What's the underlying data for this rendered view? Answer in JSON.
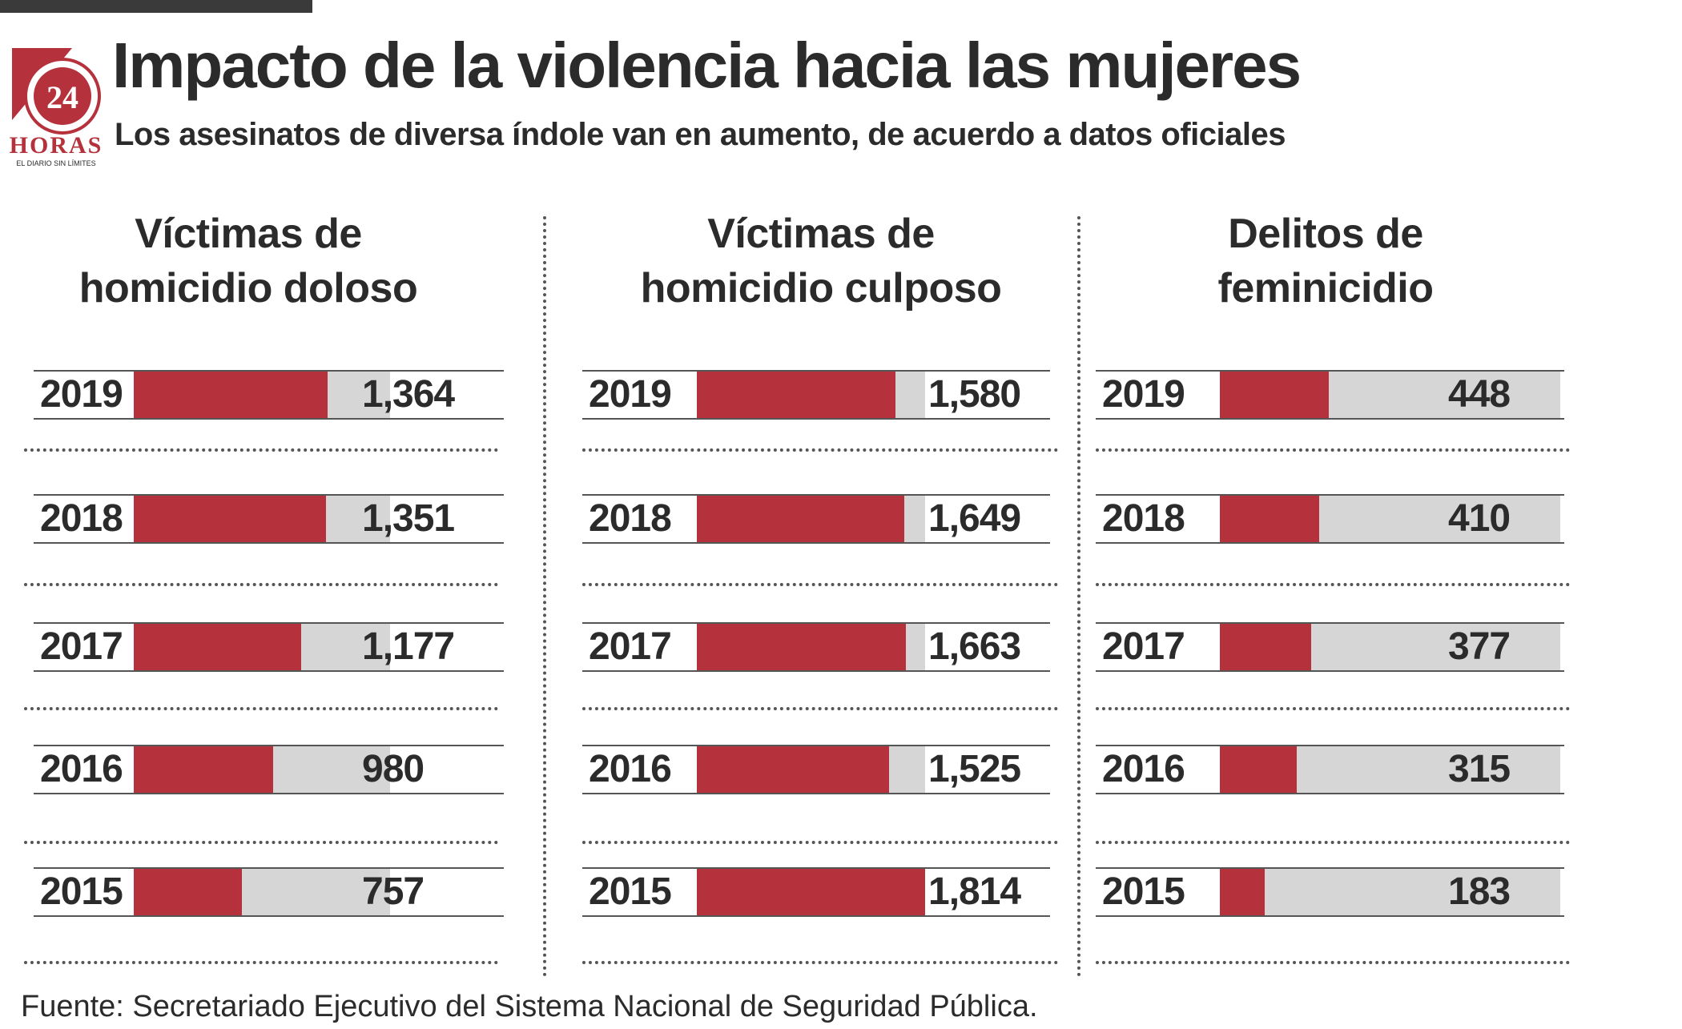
{
  "title": "Impacto de la violencia hacia las mujeres",
  "subtitle": "Los asesinatos de diversa índole van en aumento, de acuerdo a datos oficiales",
  "logo": {
    "number": "24",
    "name": "HORAS",
    "tagline": "EL DIARIO SIN LÍMITES"
  },
  "source": "Fuente: Secretariado Ejecutivo del Sistema Nacional de Seguridad Pública.",
  "colors": {
    "bar": "#b5323c",
    "track": "#d6d6d6",
    "text": "#2b2b2b"
  },
  "chart_data": [
    {
      "type": "bar",
      "title_lines": [
        "Víctimas de",
        "homicidio doloso"
      ],
      "categories": [
        "2019",
        "2018",
        "2017",
        "2016",
        "2015"
      ],
      "values": [
        1364,
        1351,
        1177,
        980,
        757
      ],
      "value_labels": [
        "1,364",
        "1,351",
        "1,177",
        "980",
        "757"
      ],
      "xlim": [
        0,
        1800
      ]
    },
    {
      "type": "bar",
      "title_lines": [
        "Víctimas de",
        "homicidio culposo"
      ],
      "categories": [
        "2019",
        "2018",
        "2017",
        "2016",
        "2015"
      ],
      "values": [
        1580,
        1649,
        1663,
        1525,
        1814
      ],
      "value_labels": [
        "1,580",
        "1,649",
        "1,663",
        "1,525",
        "1,814"
      ],
      "xlim": [
        0,
        1814
      ]
    },
    {
      "type": "bar",
      "title_lines": [
        "Delitos de",
        "feminicidio"
      ],
      "categories": [
        "2019",
        "2018",
        "2017",
        "2016",
        "2015"
      ],
      "values": [
        448,
        410,
        377,
        315,
        183
      ],
      "value_labels": [
        "448",
        "410",
        "377",
        "315",
        "183"
      ],
      "xlim": [
        0,
        1400
      ]
    }
  ]
}
